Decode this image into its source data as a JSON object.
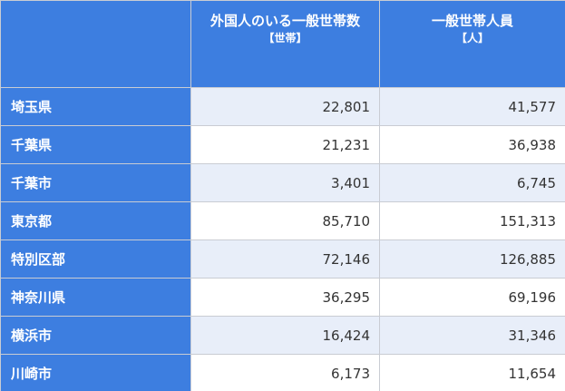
{
  "table": {
    "headers": [
      {
        "label": "",
        "unit": ""
      },
      {
        "label": "外国人のいる一般世帯数",
        "unit": "【世帯】"
      },
      {
        "label": "一般世帯人員",
        "unit": "【人】"
      }
    ],
    "rows": [
      {
        "region": "埼玉県",
        "households": "22,801",
        "persons": "41,577"
      },
      {
        "region": "千葉県",
        "households": "21,231",
        "persons": "36,938"
      },
      {
        "region": "千葉市",
        "households": "3,401",
        "persons": "6,745"
      },
      {
        "region": "東京都",
        "households": "85,710",
        "persons": "151,313"
      },
      {
        "region": "特別区部",
        "households": "72,146",
        "persons": "126,885"
      },
      {
        "region": "神奈川県",
        "households": "36,295",
        "persons": "69,196"
      },
      {
        "region": "横浜市",
        "households": "16,424",
        "persons": "31,346"
      },
      {
        "region": "川崎市",
        "households": "6,173",
        "persons": "11,654"
      }
    ]
  }
}
